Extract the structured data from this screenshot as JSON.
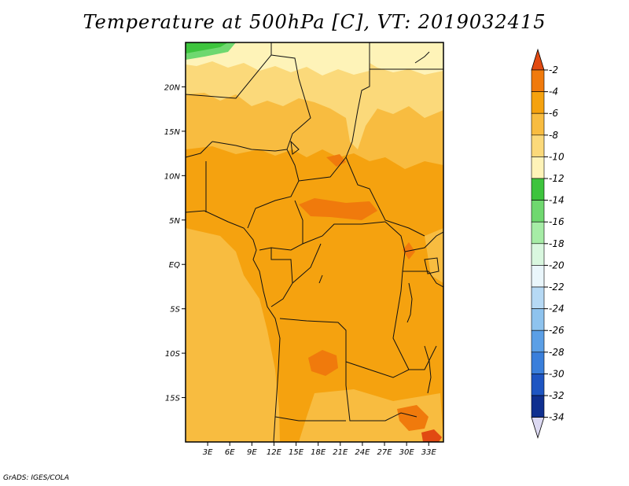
{
  "title": "Temperature at 500hPa [C], VT: 2019032415",
  "credit": "GrADS: IGES/COLA",
  "map": {
    "lon_range": [
      0,
      35
    ],
    "lat_range": [
      -20,
      25
    ],
    "lat_ticks": [
      {
        "value": 20,
        "label": "20N"
      },
      {
        "value": 15,
        "label": "15N"
      },
      {
        "value": 10,
        "label": "10N"
      },
      {
        "value": 5,
        "label": "5N"
      },
      {
        "value": 0,
        "label": "EQ"
      },
      {
        "value": -5,
        "label": "5S"
      },
      {
        "value": -10,
        "label": "10S"
      },
      {
        "value": -15,
        "label": "15S"
      }
    ],
    "lon_ticks": [
      {
        "value": 3,
        "label": "3E"
      },
      {
        "value": 6,
        "label": "6E"
      },
      {
        "value": 9,
        "label": "9E"
      },
      {
        "value": 12,
        "label": "12E"
      },
      {
        "value": 15,
        "label": "15E"
      },
      {
        "value": 18,
        "label": "18E"
      },
      {
        "value": 21,
        "label": "21E"
      },
      {
        "value": 24,
        "label": "24E"
      },
      {
        "value": 27,
        "label": "27E"
      },
      {
        "value": 30,
        "label": "30E"
      },
      {
        "value": 33,
        "label": "33E"
      }
    ]
  },
  "colorbar": {
    "levels": [
      {
        "label": "-2",
        "color": "#e14a12"
      },
      {
        "label": "-4",
        "color": "#f07a0c"
      },
      {
        "label": "-6",
        "color": "#f5a20f"
      },
      {
        "label": "-8",
        "color": "#f8bc40"
      },
      {
        "label": "-10",
        "color": "#fbd97a"
      },
      {
        "label": "-12",
        "color": "#fef3b8"
      },
      {
        "label": "-14",
        "color": "#3dc43d"
      },
      {
        "label": "-16",
        "color": "#6fd86f"
      },
      {
        "label": "-18",
        "color": "#a6eca6"
      },
      {
        "label": "-20",
        "color": "#d9f7df"
      },
      {
        "label": "-22",
        "color": "#eaf6fb"
      },
      {
        "label": "-24",
        "color": "#b6d9f4"
      },
      {
        "label": "-26",
        "color": "#8ec3ee"
      },
      {
        "label": "-28",
        "color": "#5b9fe6"
      },
      {
        "label": "-30",
        "color": "#3a7fdb"
      },
      {
        "label": "-32",
        "color": "#1e55c2"
      },
      {
        "label": "-34",
        "color": "#0f2f8f"
      }
    ],
    "top_arrow_color": "#e14a12",
    "bottom_arrow_color": "#dcd9f2"
  }
}
